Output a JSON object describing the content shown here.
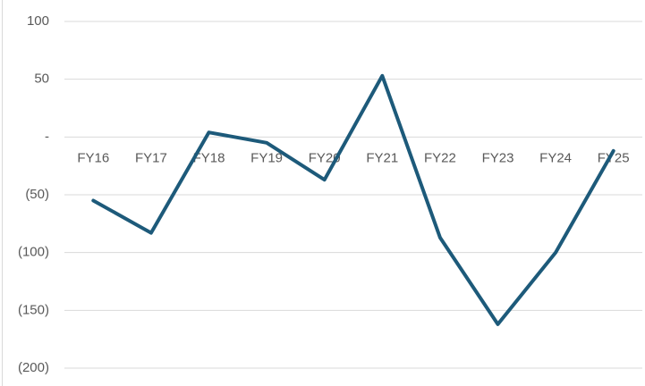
{
  "chart_data": {
    "type": "line",
    "categories": [
      "FY16",
      "FY17",
      "FY18",
      "FY19",
      "FY20",
      "FY21",
      "FY22",
      "FY23",
      "FY24",
      "FY25"
    ],
    "series": [
      {
        "color": "#1d5a7a",
        "values": [
          -55,
          -83,
          4,
          -5,
          -37,
          53,
          -87,
          -162,
          -100,
          -12
        ]
      }
    ],
    "ylim": [
      -200,
      100
    ],
    "yticks": [
      {
        "value": -200,
        "label": "(200)"
      },
      {
        "value": -150,
        "label": "(150)"
      },
      {
        "value": -100,
        "label": "(100)"
      },
      {
        "value": -50,
        "label": "(50)"
      },
      {
        "value": 0,
        "label": "-"
      },
      50,
      100
    ],
    "grid": true
  }
}
